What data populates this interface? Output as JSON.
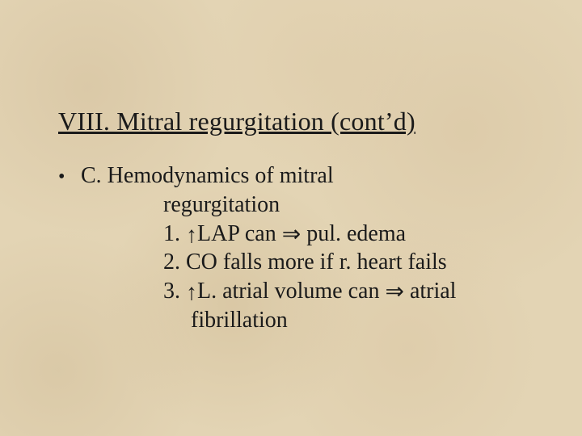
{
  "colors": {
    "background_base": "#e3d4b4",
    "text": "#1a1a1a"
  },
  "typography": {
    "family": "Times New Roman",
    "title_fontsize": 32,
    "body_fontsize": 28,
    "line_height": 1.28
  },
  "symbols": {
    "up_arrow": "↑",
    "right_double_arrow": "⇒",
    "bullet": "•"
  },
  "title": "VIII.  Mitral regurgitation (cont’d)",
  "bullet_label": "C.  Hemodynamics of mitral",
  "bullet_label_cont": "regurgitation",
  "items": {
    "one_pre": "1.  ",
    "one_mid": "LAP can ",
    "one_post": " pul. edema",
    "two": "2.  CO falls more if r. heart fails",
    "three_pre": "3.  ",
    "three_mid": "L. atrial volume can ",
    "three_post": " atrial",
    "three_cont": "fibrillation"
  }
}
